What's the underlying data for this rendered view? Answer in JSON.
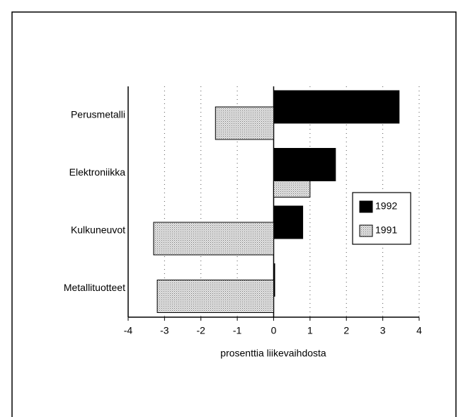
{
  "chart_data": {
    "type": "bar",
    "orientation": "horizontal",
    "categories": [
      "Perusmetalli",
      "Elektroniikka",
      "Kulkuneuvot",
      "Metallituotteet"
    ],
    "series": [
      {
        "name": "1992",
        "color": "#000000",
        "values": [
          3.45,
          1.7,
          0.8,
          0.03
        ]
      },
      {
        "name": "1991",
        "color": "#c8c8c8",
        "values": [
          -1.6,
          1.0,
          -3.3,
          -3.2
        ]
      }
    ],
    "xlim": [
      -4,
      4
    ],
    "xticks": [
      -4,
      -3,
      -2,
      -1,
      0,
      1,
      2,
      3,
      4
    ],
    "xlabel": "prosenttia liikevaihdosta",
    "grid": true,
    "legend": "right"
  }
}
